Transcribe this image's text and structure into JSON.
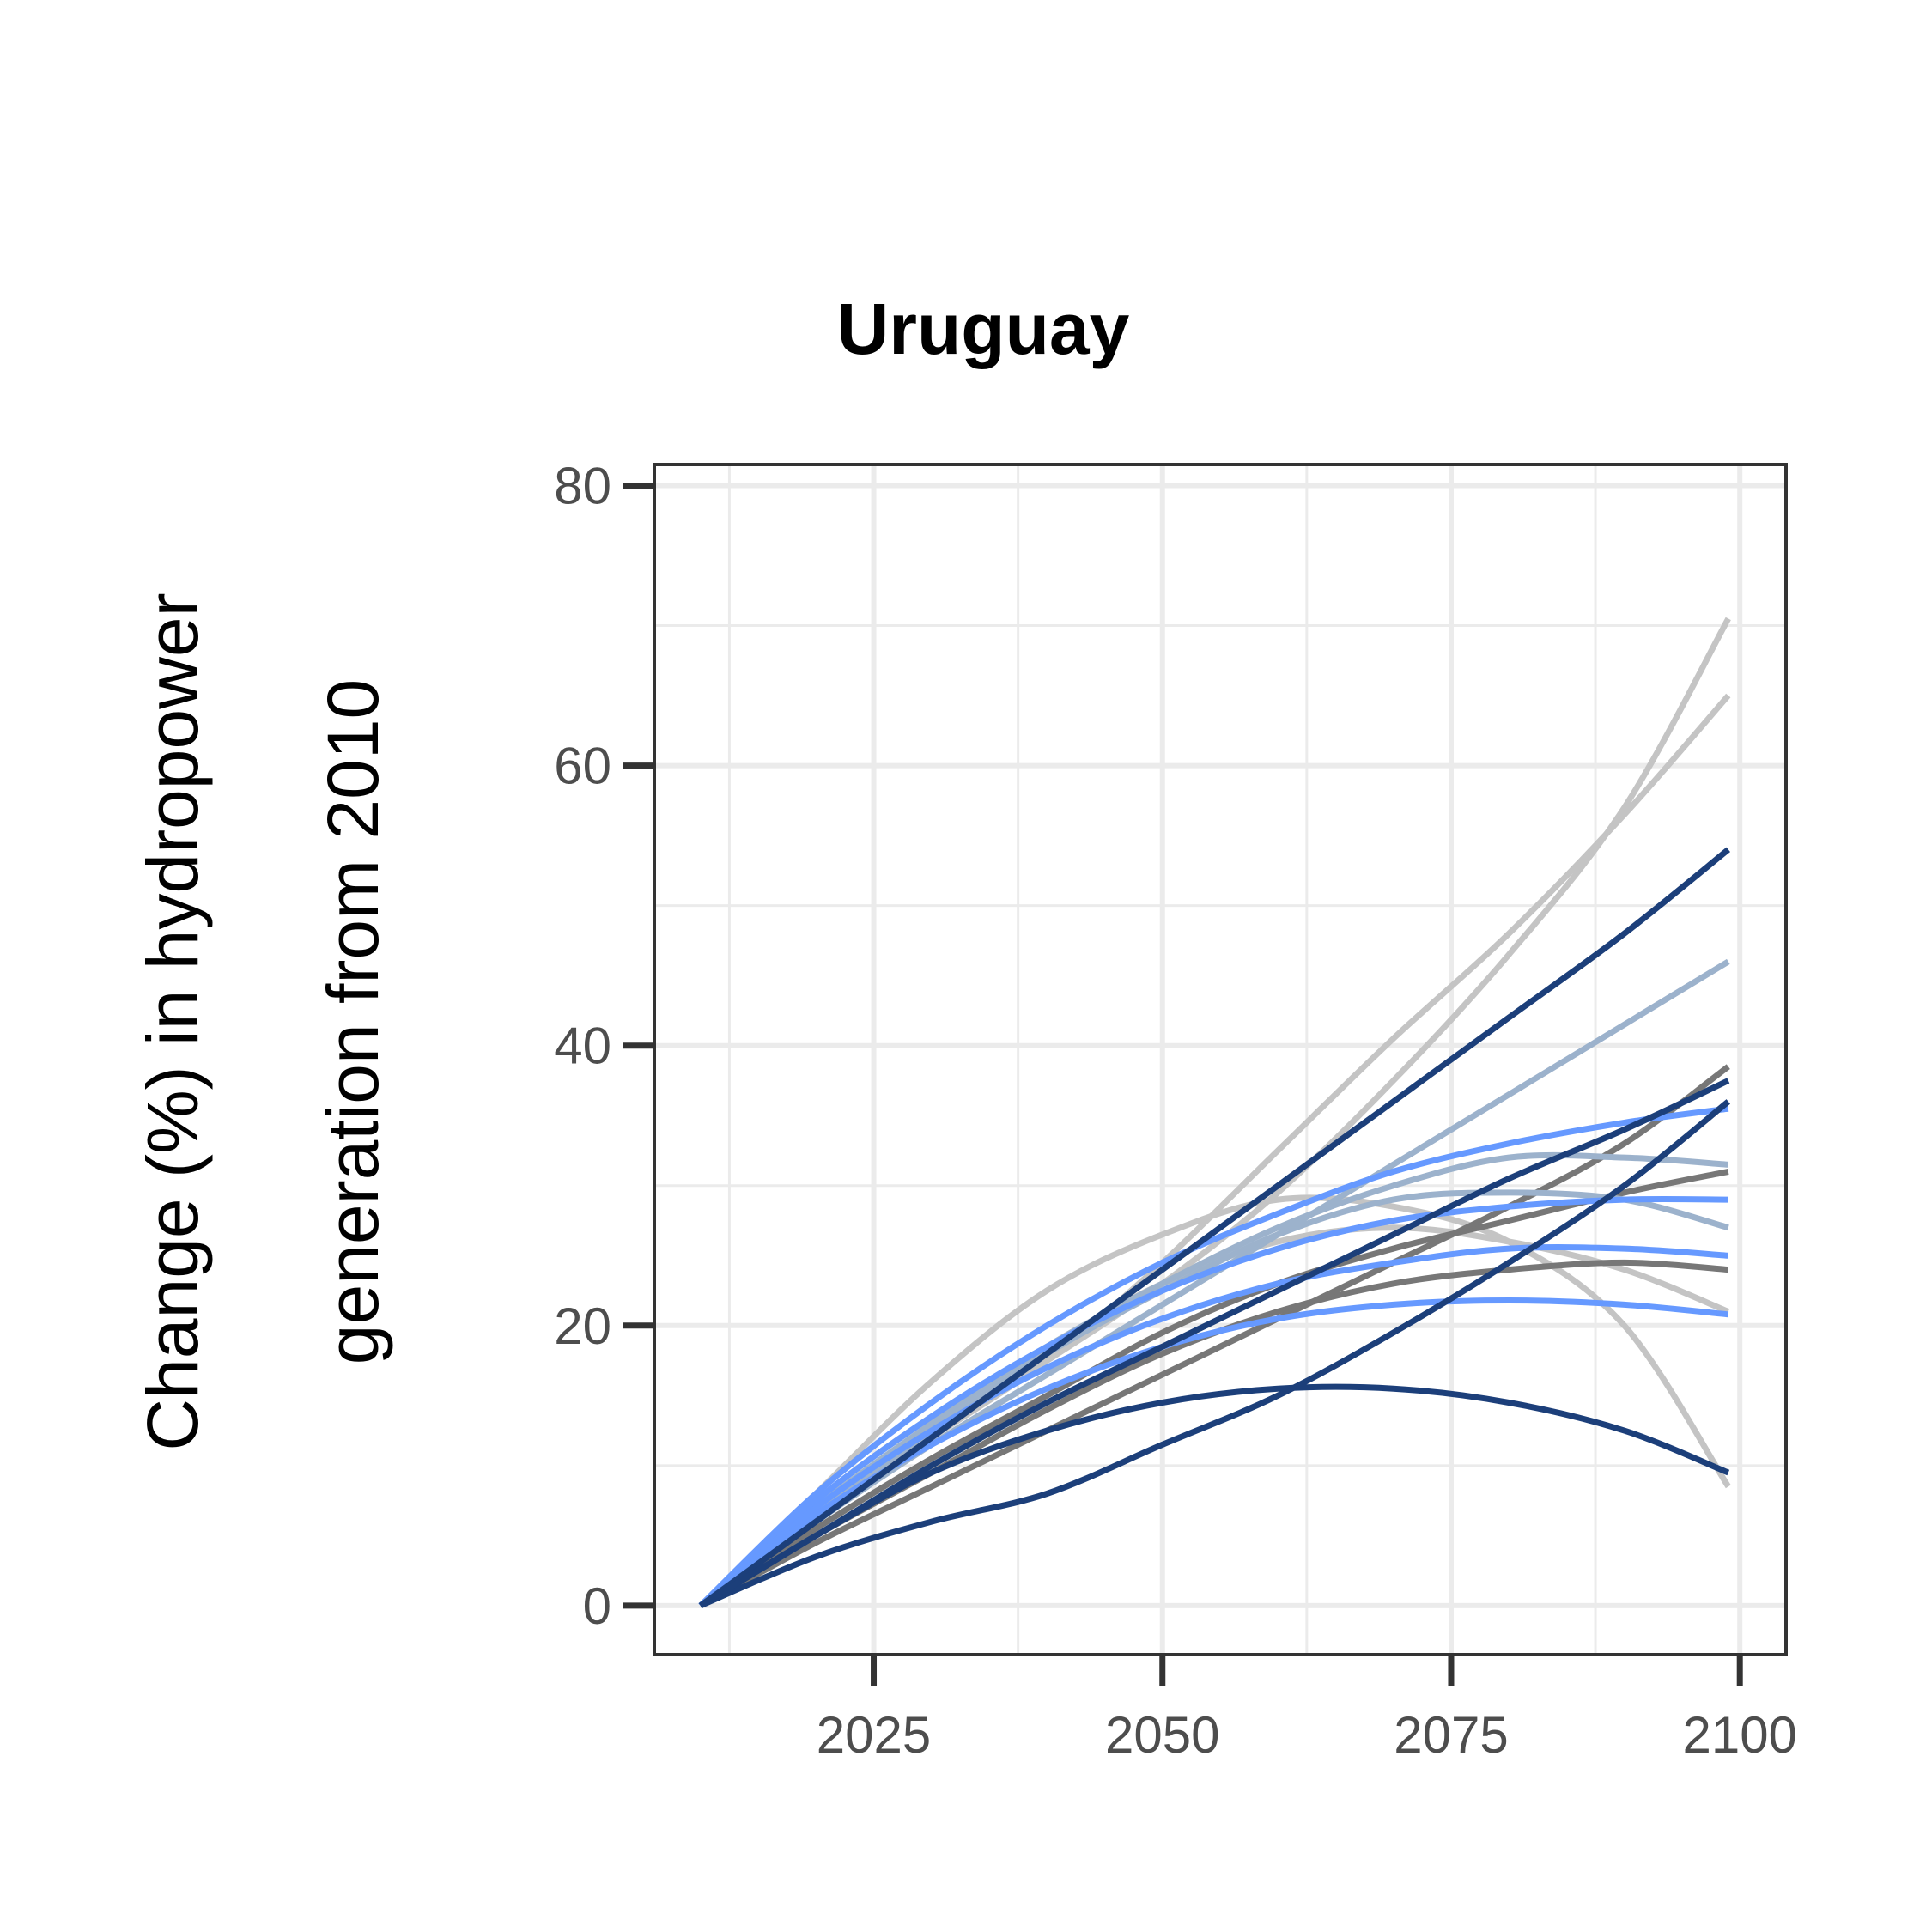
{
  "chart_data": {
    "type": "line",
    "title": "Uruguay",
    "xlabel": "",
    "ylabel_lines": [
      "Change (%) in hydropower",
      "generation from 2010"
    ],
    "xlim": [
      2006,
      2104
    ],
    "ylim": [
      -3.5,
      81.5
    ],
    "x_ticks": [
      2025,
      2050,
      2075,
      2100
    ],
    "x_tick_labels": [
      "2025",
      "2050",
      "2075",
      "2100"
    ],
    "y_ticks": [
      0,
      20,
      40,
      60,
      80
    ],
    "y_tick_labels": [
      "0",
      "20",
      "40",
      "60",
      "80"
    ],
    "grid": true,
    "legend": "none",
    "series": [
      {
        "color": "#c4c4c4",
        "x": [
          2010,
          2020,
          2030,
          2040,
          2050,
          2060,
          2070,
          2080,
          2090,
          2099
        ],
        "y": [
          0,
          8,
          16,
          22.5,
          26.5,
          29,
          28.5,
          26,
          20,
          8.5
        ]
      },
      {
        "color": "#c4c4c4",
        "x": [
          2010,
          2020,
          2030,
          2040,
          2050,
          2060,
          2070,
          2080,
          2090,
          2099
        ],
        "y": [
          0,
          7.5,
          13.5,
          18.5,
          23,
          26,
          27,
          26,
          24,
          21
        ]
      },
      {
        "color": "#c4c4c4",
        "x": [
          2010,
          2020,
          2030,
          2040,
          2050,
          2060,
          2070,
          2080,
          2090,
          2099
        ],
        "y": [
          0,
          7,
          12.5,
          17.5,
          23,
          29.5,
          37.5,
          46.5,
          57,
          70.5
        ]
      },
      {
        "color": "#c4c4c4",
        "x": [
          2010,
          2020,
          2030,
          2040,
          2050,
          2060,
          2070,
          2080,
          2090,
          2099
        ],
        "y": [
          0,
          6.5,
          12,
          17.5,
          24.5,
          32.5,
          40.5,
          48,
          56.5,
          65
        ]
      },
      {
        "color": "#777777",
        "x": [
          2010,
          2020,
          2030,
          2040,
          2050,
          2060,
          2070,
          2080,
          2090,
          2099
        ],
        "y": [
          0,
          5.5,
          10.5,
          15,
          19.5,
          23,
          25.5,
          27.5,
          29.5,
          31
        ]
      },
      {
        "color": "#777777",
        "x": [
          2010,
          2020,
          2030,
          2040,
          2050,
          2060,
          2070,
          2080,
          2090,
          2099
        ],
        "y": [
          0,
          5,
          9.5,
          14,
          18,
          21,
          23,
          24,
          24.5,
          24
        ]
      },
      {
        "color": "#777777",
        "x": [
          2010,
          2020,
          2030,
          2040,
          2050,
          2060,
          2070,
          2080,
          2090,
          2099
        ],
        "y": [
          0,
          4.5,
          8.5,
          12.5,
          16.5,
          20.5,
          24.5,
          28.5,
          33,
          38.5
        ]
      },
      {
        "color": "#9cb2cc",
        "x": [
          2010,
          2020,
          2030,
          2040,
          2050,
          2060,
          2070,
          2080,
          2090,
          2099
        ],
        "y": [
          0,
          7,
          13,
          18.5,
          23,
          27,
          30,
          32,
          32,
          31.5
        ]
      },
      {
        "color": "#9cb2cc",
        "x": [
          2010,
          2020,
          2030,
          2040,
          2050,
          2060,
          2070,
          2080,
          2090,
          2099
        ],
        "y": [
          0,
          6.5,
          12.5,
          18,
          22.5,
          26.5,
          29,
          29.5,
          29,
          27
        ]
      },
      {
        "color": "#9cb2cc",
        "x": [
          2010,
          2020,
          2030,
          2040,
          2050,
          2060,
          2070,
          2080,
          2090,
          2099
        ],
        "y": [
          0,
          6,
          11.5,
          16.5,
          21.5,
          26.5,
          31.5,
          36.5,
          41.5,
          46
        ]
      },
      {
        "color": "#6699ff",
        "x": [
          2010,
          2020,
          2030,
          2040,
          2050,
          2060,
          2070,
          2080,
          2090,
          2099
        ],
        "y": [
          0,
          8,
          14.5,
          20,
          24.5,
          28,
          31,
          33,
          34.5,
          35.5
        ]
      },
      {
        "color": "#6699ff",
        "x": [
          2010,
          2020,
          2030,
          2040,
          2050,
          2060,
          2070,
          2080,
          2090,
          2099
        ],
        "y": [
          0,
          7.5,
          13.5,
          18.5,
          22.5,
          25.5,
          27.5,
          28.5,
          29,
          29
        ]
      },
      {
        "color": "#6699ff",
        "x": [
          2010,
          2020,
          2030,
          2040,
          2050,
          2060,
          2070,
          2080,
          2090,
          2099
        ],
        "y": [
          0,
          7,
          12.5,
          17,
          20.5,
          23,
          24.5,
          25.5,
          25.5,
          25
        ]
      },
      {
        "color": "#6699ff",
        "x": [
          2010,
          2020,
          2030,
          2040,
          2050,
          2060,
          2070,
          2080,
          2090,
          2099
        ],
        "y": [
          0,
          6.5,
          11.5,
          15.5,
          18.5,
          20.5,
          21.5,
          21.8,
          21.5,
          20.8
        ]
      },
      {
        "color": "#1c3f7a",
        "x": [
          2010,
          2020,
          2030,
          2040,
          2050,
          2060,
          2070,
          2080,
          2090,
          2099
        ],
        "y": [
          0,
          6,
          12,
          18,
          24,
          30,
          36,
          42,
          48,
          54
        ]
      },
      {
        "color": "#1c3f7a",
        "x": [
          2010,
          2020,
          2030,
          2040,
          2050,
          2060,
          2070,
          2080,
          2090,
          2099
        ],
        "y": [
          0,
          5,
          10,
          14.5,
          18.5,
          22.5,
          26.5,
          30.5,
          34,
          37.5
        ]
      },
      {
        "color": "#1c3f7a",
        "x": [
          2010,
          2020,
          2030,
          2040,
          2050,
          2060,
          2070,
          2080,
          2090,
          2099
        ],
        "y": [
          0,
          3.5,
          6,
          8,
          11.5,
          15,
          19.5,
          24.5,
          30,
          36
        ]
      },
      {
        "color": "#1c3f7a",
        "x": [
          2010,
          2020,
          2030,
          2040,
          2050,
          2060,
          2070,
          2080,
          2090,
          2099
        ],
        "y": [
          0,
          5,
          9.5,
          12.5,
          14.5,
          15.5,
          15.5,
          14.5,
          12.5,
          9.5
        ]
      }
    ]
  }
}
